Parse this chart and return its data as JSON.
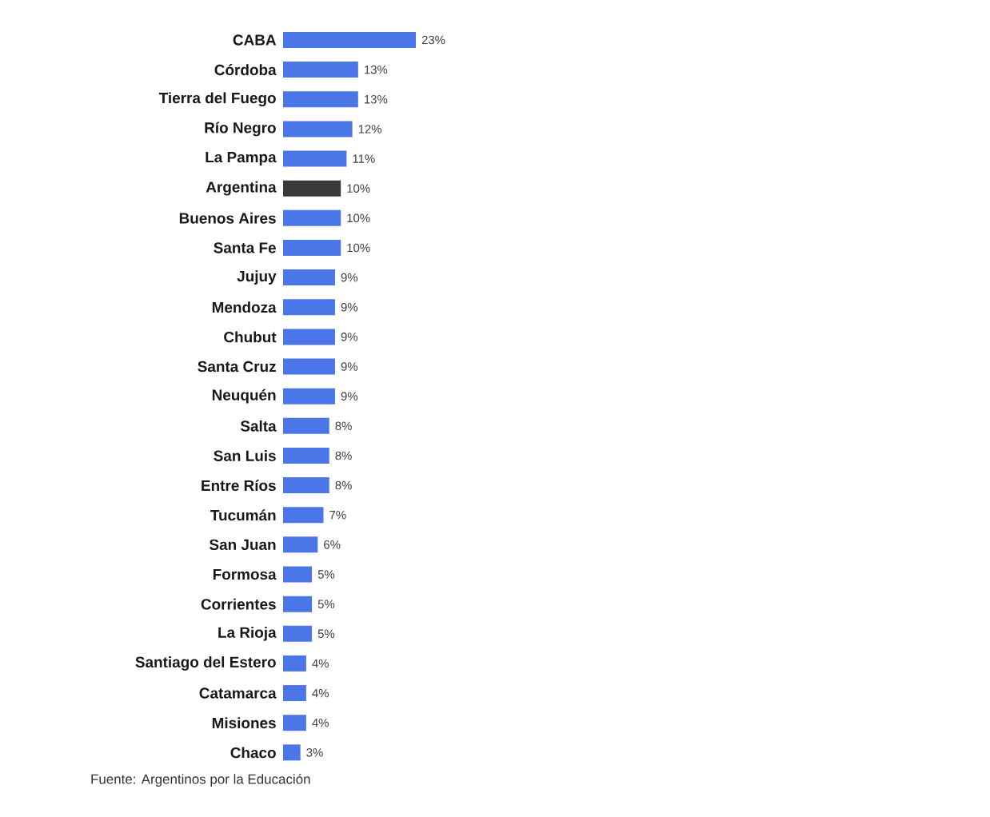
{
  "chart_data": {
    "type": "bar",
    "orientation": "horizontal",
    "categories": [
      "CABA",
      "Córdoba",
      "Tierra del Fuego",
      "Río Negro",
      "La Pampa",
      "Argentina",
      "Buenos Aires",
      "Santa Fe",
      "Jujuy",
      "Mendoza",
      "Chubut",
      "Santa Cruz",
      "Neuquén",
      "Salta",
      "San Luis",
      "Entre Ríos",
      "Tucumán",
      "San Juan",
      "Formosa",
      "Corrientes",
      "La Rioja",
      "Santiago del Estero",
      "Catamarca",
      "Misiones",
      "Chaco"
    ],
    "values": [
      23,
      13,
      13,
      12,
      11,
      10,
      10,
      10,
      9,
      9,
      9,
      9,
      9,
      8,
      8,
      8,
      7,
      6,
      5,
      5,
      5,
      4,
      4,
      4,
      3
    ],
    "value_labels": [
      "23%",
      "13%",
      "13%",
      "12%",
      "11%",
      "10%",
      "10%",
      "10%",
      "9%",
      "9%",
      "9%",
      "9%",
      "9%",
      "8%",
      "8%",
      "8%",
      "7%",
      "6%",
      "5%",
      "5%",
      "5%",
      "4%",
      "4%",
      "4%",
      "3%"
    ],
    "colors": [
      "#4a76e8",
      "#4a76e8",
      "#4a76e8",
      "#4a76e8",
      "#4a76e8",
      "#3a3a3a",
      "#4a76e8",
      "#4a76e8",
      "#4a76e8",
      "#4a76e8",
      "#4a76e8",
      "#4a76e8",
      "#4a76e8",
      "#4a76e8",
      "#4a76e8",
      "#4a76e8",
      "#4a76e8",
      "#4a76e8",
      "#4a76e8",
      "#4a76e8",
      "#4a76e8",
      "#4a76e8",
      "#4a76e8",
      "#4a76e8",
      "#4a76e8"
    ],
    "tick_labels": "y",
    "annotations": [
      "Fuente: Argentinos por la Educación"
    ]
  }
}
